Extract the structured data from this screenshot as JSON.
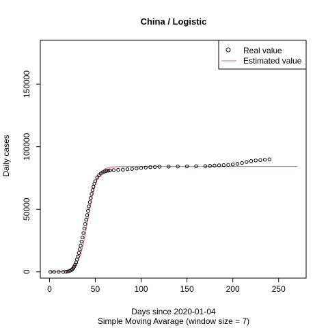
{
  "chart_data": {
    "type": "scatter",
    "title": "China / Logistic",
    "xlabel": "Days since 2020-01-04",
    "subtitle": "Simple Moving Avarage (window size = 7)",
    "ylabel": "Daily cases",
    "xlim": [
      -10,
      280
    ],
    "ylim": [
      -5000,
      185000
    ],
    "xticks": [
      0,
      50,
      100,
      150,
      200,
      250
    ],
    "yticks": [
      0,
      50000,
      100000,
      150000
    ],
    "legend_position": "top-right",
    "colors": {
      "real": "#000000",
      "estimated": "#d4607a"
    },
    "series": [
      {
        "name": "Real value",
        "kind": "points",
        "x": [
          1,
          5,
          10,
          15,
          18,
          20,
          22,
          24,
          25,
          26,
          27,
          28,
          29,
          30,
          31,
          32,
          33,
          34,
          35,
          36,
          37,
          38,
          39,
          40,
          41,
          42,
          43,
          44,
          45,
          46,
          47,
          48,
          49,
          50,
          52,
          54,
          56,
          58,
          60,
          62,
          64,
          66,
          70,
          75,
          80,
          85,
          90,
          95,
          100,
          105,
          110,
          115,
          120,
          130,
          140,
          150,
          160,
          170,
          175,
          180,
          185,
          190,
          195,
          200,
          205,
          210,
          215,
          220,
          225,
          230,
          235,
          240
        ],
        "y": [
          0,
          0,
          0,
          0,
          100,
          300,
          800,
          1500,
          2200,
          3000,
          4200,
          5800,
          7500,
          9800,
          12300,
          15100,
          18000,
          21000,
          24200,
          27500,
          31000,
          34600,
          38200,
          41800,
          45300,
          48800,
          52300,
          55700,
          59000,
          62300,
          65300,
          68000,
          70400,
          72500,
          75300,
          77200,
          78600,
          79500,
          80100,
          80600,
          80900,
          81100,
          81300,
          81500,
          81700,
          82000,
          82300,
          82600,
          83000,
          83300,
          83600,
          83800,
          84000,
          84100,
          84200,
          84300,
          84400,
          84500,
          84700,
          84900,
          85100,
          85300,
          85500,
          85800,
          86300,
          87000,
          87800,
          88500,
          89000,
          89300,
          89600,
          89900
        ]
      },
      {
        "name": "Estimated value",
        "kind": "line",
        "model": "logistic",
        "params": {
          "K": 84200,
          "r": 0.2,
          "x0": 42
        },
        "x_range": [
          1,
          270
        ]
      }
    ]
  }
}
